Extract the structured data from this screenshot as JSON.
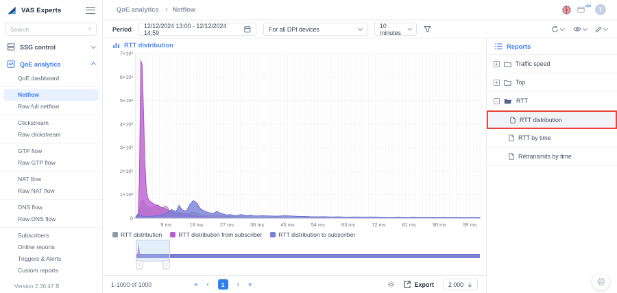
{
  "brand": {
    "name": "VAS Experts"
  },
  "header": {
    "breadcrumb": [
      "QoE analytics",
      "Netflow"
    ],
    "avatar_initial": "T",
    "dpi_badge": "dpi"
  },
  "sidebar": {
    "search_placeholder": "Search",
    "sections": [
      {
        "label": "SSG control",
        "expanded": false
      },
      {
        "label": "QoE analytics",
        "expanded": true
      }
    ],
    "groups": [
      [
        "QoE dashboard"
      ],
      [
        "Netflow",
        "Raw full netflow"
      ],
      [
        "Clickstream",
        "Raw clickstream"
      ],
      [
        "GTP flow",
        "Raw GTP flow"
      ],
      [
        "NAT flow",
        "Raw NAT flow"
      ],
      [
        "DNS flow",
        "Raw DNS flow"
      ],
      [
        "Subscribers",
        "Online reports",
        "Triggers & Alerts",
        "Custom reports"
      ]
    ],
    "active_item": "Netflow",
    "version": "Version 2.36.47 B"
  },
  "toolbar": {
    "period_label": "Period",
    "period_value": "12/12/2024 13:00 - 12/12/2024 14:59",
    "device_filter": "For all DPI devices",
    "interval": "10 minutes"
  },
  "chart_panel": {
    "title": "RTT distribution"
  },
  "reports": {
    "title": "Reports",
    "tree": [
      {
        "label": "Traffic speed",
        "expanded": false,
        "children": []
      },
      {
        "label": "Top",
        "expanded": false,
        "children": []
      },
      {
        "label": "RTT",
        "expanded": true,
        "children": [
          {
            "label": "RTT distribution",
            "selected": true
          },
          {
            "label": "RTT by time",
            "selected": false
          },
          {
            "label": "Retransmits by time",
            "selected": false
          }
        ]
      }
    ],
    "highlight_color": "#e8463c"
  },
  "pagination": {
    "range": "1-1000 of 1000",
    "first": "«",
    "prev": "‹",
    "page": "1",
    "next": "›",
    "last": "»",
    "export_label": "Export",
    "page_size": "2 000"
  },
  "chart_data": {
    "type": "area",
    "title": "RTT distribution",
    "xlim": [
      0,
      102
    ],
    "ylim": [
      0,
      7000
    ],
    "x_ticks": [
      "9 ms",
      "18 ms",
      "27 ms",
      "36 ms",
      "45 ms",
      "54 ms",
      "63 ms",
      "72 ms",
      "81 ms",
      "90 ms",
      "99 ms"
    ],
    "x_tick_values": [
      9,
      18,
      27,
      36,
      45,
      54,
      63,
      72,
      81,
      90,
      99
    ],
    "y_ticks": [
      "0",
      "1×10³",
      "2×10³",
      "3×10³",
      "4×10³",
      "5×10³",
      "6×10³",
      "7×10³"
    ],
    "y_tick_values": [
      0,
      1000,
      2000,
      3000,
      4000,
      5000,
      6000,
      7000
    ],
    "grid": true,
    "legend_position": "bottom",
    "series": [
      {
        "name": "RTT distribution",
        "color": "#9096a6",
        "fill": "rgba(148,153,166,0.6)",
        "legend_color": "#9298a8",
        "points": [
          [
            0,
            60
          ],
          [
            1,
            250
          ],
          [
            2,
            800
          ],
          [
            3,
            520
          ],
          [
            4,
            460
          ],
          [
            5,
            430
          ],
          [
            6,
            540
          ],
          [
            6.6,
            570
          ],
          [
            7.2,
            480
          ],
          [
            8,
            430
          ],
          [
            8.6,
            530
          ],
          [
            9.4,
            470
          ],
          [
            10,
            330
          ],
          [
            11,
            280
          ],
          [
            12,
            230
          ],
          [
            13,
            260
          ],
          [
            14,
            200
          ],
          [
            15,
            180
          ],
          [
            16,
            230
          ],
          [
            17,
            260
          ],
          [
            18,
            210
          ],
          [
            19,
            150
          ],
          [
            20,
            130
          ],
          [
            22,
            100
          ],
          [
            24,
            120
          ],
          [
            26,
            90
          ],
          [
            28,
            70
          ],
          [
            30,
            60
          ],
          [
            33,
            50
          ],
          [
            36,
            45
          ],
          [
            40,
            40
          ],
          [
            44,
            40
          ],
          [
            48,
            30
          ],
          [
            55,
            25
          ],
          [
            60,
            22
          ],
          [
            70,
            18
          ],
          [
            80,
            15
          ],
          [
            90,
            12
          ],
          [
            99,
            10
          ],
          [
            102,
            10
          ]
        ]
      },
      {
        "name": "RTT distribution from subscriber",
        "color": "#a94fc5",
        "fill": "rgba(187,95,207,0.8)",
        "legend_color": "#b85ecf",
        "points": [
          [
            0,
            40
          ],
          [
            0.7,
            120
          ],
          [
            1.1,
            1800
          ],
          [
            1.5,
            6700
          ],
          [
            1.9,
            6500
          ],
          [
            2.3,
            4600
          ],
          [
            2.7,
            2400
          ],
          [
            3.1,
            1300
          ],
          [
            3.5,
            900
          ],
          [
            4,
            750
          ],
          [
            5,
            640
          ],
          [
            6,
            570
          ],
          [
            7,
            500
          ],
          [
            8,
            440
          ],
          [
            9,
            380
          ],
          [
            10,
            310
          ],
          [
            11,
            240
          ],
          [
            12,
            190
          ],
          [
            13,
            210
          ],
          [
            14,
            160
          ],
          [
            15,
            175
          ],
          [
            16,
            140
          ],
          [
            17,
            110
          ],
          [
            18,
            90
          ],
          [
            19,
            70
          ],
          [
            20,
            60
          ],
          [
            22,
            45
          ],
          [
            24,
            35
          ],
          [
            26,
            28
          ],
          [
            28,
            22
          ],
          [
            30,
            18
          ],
          [
            34,
            12
          ],
          [
            38,
            9
          ],
          [
            42,
            7
          ],
          [
            46,
            6
          ],
          [
            50,
            5
          ],
          [
            60,
            4
          ],
          [
            70,
            3
          ],
          [
            80,
            3
          ],
          [
            90,
            2
          ],
          [
            102,
            2
          ]
        ]
      },
      {
        "name": "RTT distribution to subscriber",
        "color": "#6a70ce",
        "fill": "rgba(121,127,213,0.8)",
        "legend_color": "#7a80d8",
        "points": [
          [
            0,
            25
          ],
          [
            0.5,
            160
          ],
          [
            1,
            130
          ],
          [
            2,
            90
          ],
          [
            3,
            65
          ],
          [
            4,
            75
          ],
          [
            5,
            85
          ],
          [
            6,
            105
          ],
          [
            7,
            125
          ],
          [
            8,
            155
          ],
          [
            9,
            210
          ],
          [
            10,
            290
          ],
          [
            10.6,
            370
          ],
          [
            11.2,
            330
          ],
          [
            12,
            290
          ],
          [
            12.8,
            545
          ],
          [
            13.4,
            430
          ],
          [
            14,
            340
          ],
          [
            15,
            305
          ],
          [
            16,
            570
          ],
          [
            17,
            745
          ],
          [
            17.6,
            705
          ],
          [
            18.2,
            630
          ],
          [
            19,
            430
          ],
          [
            20,
            330
          ],
          [
            21,
            265
          ],
          [
            22,
            225
          ],
          [
            23,
            205
          ],
          [
            24,
            295
          ],
          [
            25,
            225
          ],
          [
            26,
            175
          ],
          [
            27,
            135
          ],
          [
            28,
            155
          ],
          [
            29,
            125
          ],
          [
            30,
            115
          ],
          [
            31,
            155
          ],
          [
            32,
            135
          ],
          [
            33,
            115
          ],
          [
            34,
            135
          ],
          [
            35,
            105
          ],
          [
            36,
            95
          ],
          [
            37,
            115
          ],
          [
            38,
            105
          ],
          [
            40,
            95
          ],
          [
            42,
            85
          ],
          [
            44,
            115
          ],
          [
            46,
            95
          ],
          [
            48,
            75
          ],
          [
            50,
            72
          ],
          [
            52,
            62
          ],
          [
            54,
            58
          ],
          [
            56,
            62
          ],
          [
            58,
            52
          ],
          [
            60,
            57
          ],
          [
            62,
            47
          ],
          [
            65,
            52
          ],
          [
            68,
            47
          ],
          [
            70,
            52
          ],
          [
            72,
            47
          ],
          [
            75,
            42
          ],
          [
            78,
            47
          ],
          [
            80,
            42
          ],
          [
            82,
            47
          ],
          [
            85,
            42
          ],
          [
            88,
            44
          ],
          [
            90,
            40
          ],
          [
            92,
            44
          ],
          [
            94,
            40
          ],
          [
            96,
            42
          ],
          [
            98,
            38
          ],
          [
            100,
            42
          ],
          [
            102,
            40
          ]
        ]
      }
    ],
    "minimap": {
      "selection_ms": [
        0,
        10
      ]
    }
  }
}
